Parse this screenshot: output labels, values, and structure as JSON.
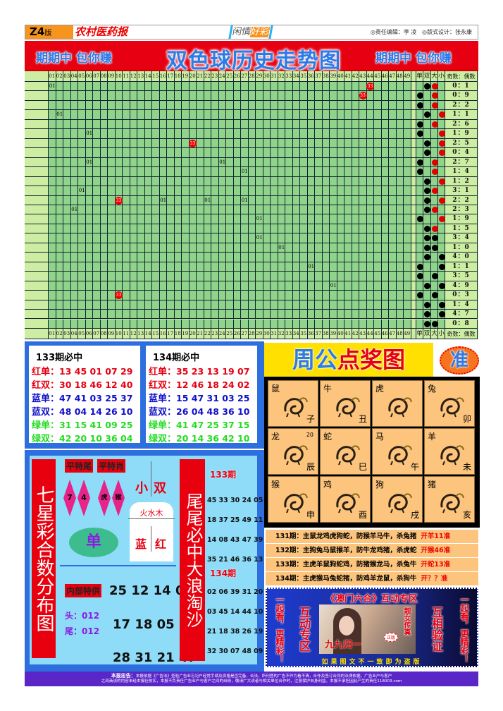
{
  "header": {
    "edition": "Z4",
    "edition_suffix": "版",
    "paper_name": "农村医药报",
    "slogan_a": "闲情",
    "slogan_b": "好彩",
    "editor": "◎责任编辑：李 凌",
    "designer": "◎版式设计：张永康"
  },
  "banner": {
    "left": "期期中 包你赚",
    "title": "双色球历史走势图",
    "right": "期期中 包你赚"
  },
  "trend": {
    "numbers": [
      "01",
      "02",
      "03",
      "04",
      "05",
      "06",
      "07",
      "08",
      "09",
      "10",
      "11",
      "12",
      "13",
      "14",
      "15",
      "16",
      "17",
      "18",
      "19",
      "20",
      "21",
      "22",
      "23",
      "24",
      "25",
      "26",
      "27",
      "28",
      "29",
      "30",
      "31",
      "32",
      "33",
      "34",
      "35",
      "36",
      "37",
      "38",
      "39",
      "40",
      "41",
      "42",
      "43",
      "44",
      "45",
      "46",
      "47",
      "48",
      "49"
    ],
    "stat_headers": [
      "单",
      "双",
      "大",
      "小",
      "奇数：偶数"
    ],
    "colors": {
      "grid": "#8fd48a",
      "pale": "#cdeea2",
      "ball": "#e00000",
      "red_dot": "#e00000",
      "black_dot": "#000000"
    },
    "rows": [
      {
        "marks": [
          {
            "col": 1,
            "label": "01",
            "type": "text"
          },
          {
            "col": 44,
            "label": "33",
            "type": "ball"
          }
        ],
        "odd_even": "shuang",
        "big_small": "da",
        "dot_color": "red",
        "ratio": "0：1"
      },
      {
        "marks": [
          {
            "col": 43,
            "label": "33",
            "type": "ball"
          }
        ],
        "odd_even": "dan",
        "big_small": "da",
        "dot_color": "red",
        "ratio": "0：9"
      },
      {
        "marks": [],
        "odd_even": "dan",
        "big_small": "da",
        "dot_color": "red",
        "ratio": "2：2"
      },
      {
        "marks": [
          {
            "col": 2,
            "label": "01",
            "type": "text"
          }
        ],
        "odd_even": "shuang",
        "big_small": "xiao",
        "dot_color": "red",
        "ratio": "1：1"
      },
      {
        "marks": [],
        "odd_even": "dan",
        "big_small": "da",
        "dot_color": "red",
        "ratio": "2：6"
      },
      {
        "marks": [
          {
            "col": 6,
            "label": "01",
            "type": "text"
          }
        ],
        "odd_even": "dan",
        "big_small": "xiao",
        "dot_color": "red",
        "ratio": "1：9"
      },
      {
        "marks": [
          {
            "col": 20,
            "label": "33",
            "type": "ball"
          }
        ],
        "odd_even": "shuang",
        "big_small": "xiao",
        "dot_color": "red",
        "ratio": "2：5"
      },
      {
        "marks": [],
        "odd_even": "shuang",
        "big_small": "xiao",
        "dot_color": "red",
        "ratio": "0：4"
      },
      {
        "marks": [
          {
            "col": 6,
            "label": "01",
            "type": "text"
          },
          {
            "col": 24,
            "label": "01",
            "type": "text"
          }
        ],
        "odd_even": "dan",
        "big_small": "da",
        "dot_color": "red",
        "ratio": "2：7"
      },
      {
        "marks": [
          {
            "col": 27,
            "label": "01",
            "type": "text"
          }
        ],
        "odd_even": "dan",
        "big_small": "da",
        "dot_color": "red",
        "ratio": "1：4"
      },
      {
        "marks": [],
        "odd_even": "shuang",
        "big_small": "xiao",
        "dot_color": "red",
        "ratio": "1：2"
      },
      {
        "marks": [
          {
            "col": 5,
            "label": "01",
            "type": "text"
          }
        ],
        "odd_even": "shuang",
        "big_small": "da",
        "dot_color": "red",
        "ratio": "3：1"
      },
      {
        "marks": [
          {
            "col": 10,
            "label": "33",
            "type": "ball"
          },
          {
            "col": 16,
            "label": "01",
            "type": "text"
          },
          {
            "col": 22,
            "label": "01",
            "type": "text"
          },
          {
            "col": 27,
            "label": "01",
            "type": "text"
          }
        ],
        "odd_even": "shuang",
        "big_small": "xiao",
        "dot_color": "red",
        "ratio": "2：2"
      },
      {
        "marks": [
          {
            "col": 4,
            "label": "01",
            "type": "text"
          }
        ],
        "odd_even": "shuang",
        "big_small": "da",
        "dot_color": "red",
        "ratio": "2：3"
      },
      {
        "marks": [
          {
            "col": 29,
            "label": "01",
            "type": "text"
          }
        ],
        "odd_even": "dan",
        "big_small": "xiao",
        "dot_color": "red",
        "ratio": "1：9"
      },
      {
        "marks": [],
        "odd_even": "shuang",
        "big_small": "da",
        "dot_color": "red",
        "ratio": "1：5"
      },
      {
        "marks": [
          {
            "col": 29,
            "label": "01",
            "type": "text"
          }
        ],
        "odd_even": "shuang",
        "big_small": "da",
        "dot_color": "black",
        "ratio": "3：4"
      },
      {
        "marks": [
          {
            "col": 32,
            "label": "01",
            "type": "text"
          }
        ],
        "odd_even": "shuang",
        "big_small": "da",
        "dot_color": "black",
        "ratio": "1：0"
      },
      {
        "marks": [],
        "odd_even": "shuang",
        "big_small": "xiao",
        "dot_color": "black",
        "ratio": "4：0"
      },
      {
        "marks": [
          {
            "col": 36,
            "label": "01",
            "type": "text"
          }
        ],
        "odd_even": "dan",
        "big_small": "xiao",
        "dot_color": "black",
        "ratio": "1：1"
      },
      {
        "marks": [],
        "odd_even": "dan",
        "big_small": "da",
        "dot_color": "black",
        "ratio": "3：5"
      },
      {
        "marks": [
          {
            "col": 39,
            "label": "01",
            "type": "text"
          }
        ],
        "odd_even": "shuang",
        "big_small": "xiao",
        "dot_color": "black",
        "ratio": "4：9"
      },
      {
        "marks": [
          {
            "col": 10,
            "label": "33",
            "type": "ball"
          }
        ],
        "odd_even": "dan",
        "big_small": "da",
        "dot_color": "black",
        "ratio": "0：3"
      },
      {
        "marks": [],
        "odd_even": "shuang",
        "big_small": "xiao",
        "dot_color": "black",
        "ratio": "1：4"
      },
      {
        "marks": [],
        "odd_even": "shuang",
        "big_small": "xiao",
        "dot_color": "black",
        "ratio": "4：7"
      },
      {
        "marks": [],
        "odd_even": "shuang",
        "big_small": "da",
        "dot_color": "black",
        "ratio": "0：8"
      }
    ]
  },
  "picks": [
    {
      "title": "133期必中",
      "lines": [
        {
          "label": "红单：",
          "nums": "13 45 01 07 29",
          "color": "#e60012"
        },
        {
          "label": "红双：",
          "nums": "30 18 46 12 40",
          "color": "#e60012"
        },
        {
          "label": "蓝单：",
          "nums": "47 41 03 25 37",
          "color": "#1010c8"
        },
        {
          "label": "蓝双：",
          "nums": "48 04 14 26 10",
          "color": "#1010c8"
        },
        {
          "label": "绿单：",
          "nums": "31 15 41 09 25",
          "color": "#22dd22"
        },
        {
          "label": "绿双：",
          "nums": "42 20 10 36 04",
          "color": "#22dd22"
        }
      ]
    },
    {
      "title": "134期必中",
      "lines": [
        {
          "label": "红单：",
          "nums": "35 23 13 19 07",
          "color": "#e60012"
        },
        {
          "label": "红双：",
          "nums": "12 46 18 24 02",
          "color": "#e60012"
        },
        {
          "label": "蓝单：",
          "nums": "15 47 31 03 25",
          "color": "#1010c8"
        },
        {
          "label": "蓝双：",
          "nums": "26 04 48 36 10",
          "color": "#1010c8"
        },
        {
          "label": "绿单：",
          "nums": "41 47 25 37 15",
          "color": "#22dd22"
        },
        {
          "label": "绿双：",
          "nums": "20 14 36 42 10",
          "color": "#22dd22"
        }
      ]
    }
  ],
  "seven": {
    "title": "七星彩合数分布图",
    "ping_te_wei": "平特尾",
    "ping_te_xiao": "平特肖",
    "tails": [
      "7",
      "4"
    ],
    "zodiacs": [
      "虎",
      "猴"
    ],
    "xiao": "小",
    "shuang": "双",
    "elements": "火水木",
    "lan": "蓝",
    "hong": "红",
    "dan": "单",
    "internal_label": "内部特供",
    "rows": [
      "25 12 14 03",
      "17 18 05 38",
      "28 31 21 47"
    ],
    "head_label": "头：",
    "head_val": "012",
    "tail_label": "尾：",
    "tail_val": "012",
    "vertical": "尾尾必中大浪淘沙",
    "p133": "133期",
    "list133": [
      "45 33 30 24 05",
      "18 37 25 49 11",
      "14 08 43 47 39",
      "35 21 46 36 13"
    ],
    "p134": "134期",
    "list134": [
      "02 06 39 31 20",
      "03 45 14 44 10",
      "21 18 38 26 19",
      "32 30 07 48 09"
    ]
  },
  "zhougong": {
    "title_a": "周公",
    "title_b": "点奖图",
    "badge": "准",
    "cells": [
      {
        "name": "鼠",
        "branch": "子"
      },
      {
        "name": "牛",
        "branch": "丑"
      },
      {
        "name": "虎",
        "branch": ""
      },
      {
        "name": "兔",
        "branch": "卯"
      },
      {
        "name": "龙",
        "branch": "辰",
        "extra": "20"
      },
      {
        "name": "蛇",
        "branch": "巳"
      },
      {
        "name": "马",
        "branch": "午"
      },
      {
        "name": "羊",
        "branch": "未"
      },
      {
        "name": "猴",
        "branch": "申"
      },
      {
        "name": "鸡",
        "branch": "酉"
      },
      {
        "name": "狗",
        "branch": "戌"
      },
      {
        "name": "猪",
        "branch": "亥"
      }
    ],
    "predictions": [
      {
        "text": "131期：主鼠龙鸡虎狗蛇，防猴羊马牛，杀兔猪",
        "result": "开羊11准"
      },
      {
        "text": "132期：主狗兔马鼠猴羊，防牛龙鸡猪，杀虎蛇",
        "result": "开猴46准"
      },
      {
        "text": "133期：主虎羊鼠狗蛇鸡，防猪猴龙马，杀兔牛",
        "result": "开蛇13准"
      },
      {
        "text": "134期：主虎猴马兔蛇猪，防鸡羊龙鼠，杀狗牛",
        "result": "开？？准"
      }
    ]
  },
  "ad": {
    "title": "《澳门六合》互动专区",
    "left_outer": "一起看，更精彩！",
    "left_inner": "互动专区",
    "right_inner": "互相验证",
    "right_outer": "一起看，更精彩！",
    "photo_caption": "靓女传真",
    "photo_brand": "九九归一",
    "photo_badge": "正版",
    "footer": "如果图文不一致即为盗版"
  },
  "footer": {
    "label": "本报忠告：",
    "line1": "本报依据《广告法》查验广告业忘记户经常手续及资格是否完备、合法，所刊登的广告不作为看不清，合作及签订合同的法律依据，广告业户与客户",
    "line2": "之间商谈的内容未经本报社核实，本报不负责任广告业户与客户之间的纠纷，敬请广大读者与相关单位合作时，注意保护自身利益，本报不承担因此产生的责任118003.com"
  }
}
